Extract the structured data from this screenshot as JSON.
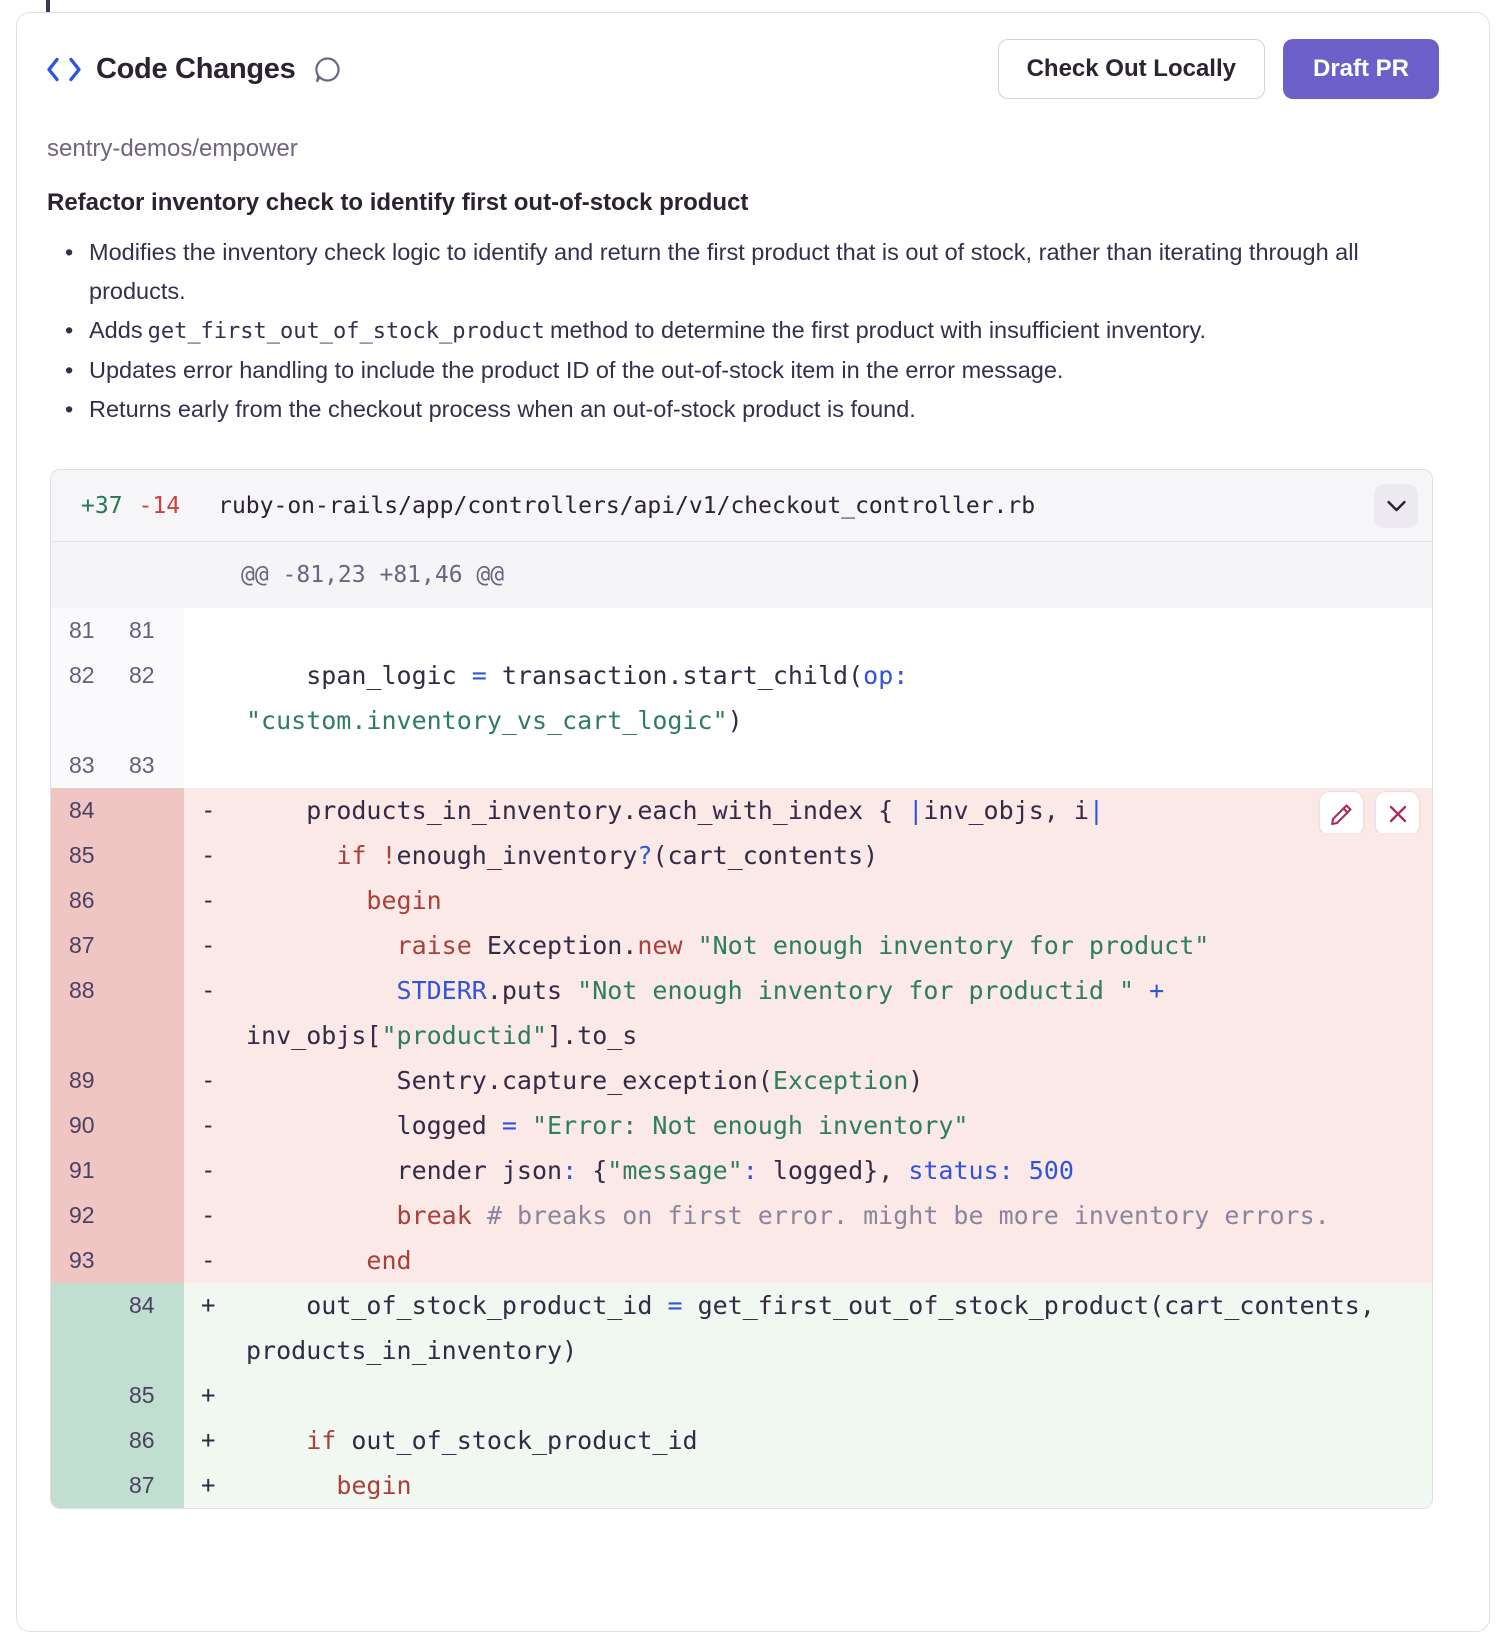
{
  "header": {
    "title": "Code Changes",
    "check_out_label": "Check Out Locally",
    "draft_pr_label": "Draft PR"
  },
  "repo": "sentry-demos/empower",
  "change_title": "Refactor inventory check to identify first out-of-stock product",
  "bullets": [
    {
      "pre": "Modifies the inventory check logic to identify and return the first product that is out of stock, rather than iterating through all products.",
      "code": "",
      "post": ""
    },
    {
      "pre": "Adds",
      "code": "get_first_out_of_stock_product",
      "post": "method to determine the first product with insufficient inventory."
    },
    {
      "pre": "Updates error handling to include the product ID of the out-of-stock item in the error message.",
      "code": "",
      "post": ""
    },
    {
      "pre": "Returns early from the checkout process when an out-of-stock product is found.",
      "code": "",
      "post": ""
    }
  ],
  "icons": {
    "title_icon": "code-icon",
    "comment_icon": "comment-bubble-icon",
    "collapse_icon": "chevron-down-icon",
    "edit_icon": "pencil-icon",
    "reject_icon": "x-icon"
  },
  "colors": {
    "accent_purple": "#6C5FC7",
    "added_green": "#257952",
    "removed_red": "#CE413C",
    "string_green": "#2E7D5E",
    "keyword_red": "#AA4039",
    "operator_blue": "#3055D8",
    "comment_gray": "#8B849B",
    "action_icon_maroon": "#A62B5E",
    "removed_row_bg": "#FAE9E7",
    "removed_gutter_bg": "#EFC6C3",
    "added_row_bg": "#F0F8F1",
    "added_gutter_bg": "#C0DFD0"
  },
  "diff": {
    "added_stat": "+37",
    "removed_stat": "-14",
    "file_path": "ruby-on-rails/app/controllers/api/v1/checkout_controller.rb",
    "hunk": "@@ -81,23 +81,46 @@",
    "markers": {
      "ctx": "",
      "del": "-",
      "add": "+"
    },
    "rows": [
      {
        "type": "ctx",
        "old": "81",
        "new": "81",
        "segs": []
      },
      {
        "type": "ctx",
        "old": "82",
        "new": "82",
        "segs": [
          [
            "d",
            "    span_logic "
          ],
          [
            "b",
            "="
          ],
          [
            "d",
            " transaction.start_child("
          ],
          [
            "b",
            "op:"
          ],
          [
            "d",
            " "
          ],
          [
            "s",
            "\"custom.inventory_vs_cart_logic\""
          ],
          [
            "d",
            ")"
          ]
        ]
      },
      {
        "type": "ctx",
        "old": "83",
        "new": "83",
        "segs": []
      },
      {
        "type": "del",
        "old": "84",
        "new": "",
        "actions": true,
        "segs": [
          [
            "d",
            "    products_in_inventory.each_with_index { "
          ],
          [
            "b",
            "|"
          ],
          [
            "d",
            "inv_objs, i"
          ],
          [
            "b",
            "|"
          ]
        ]
      },
      {
        "type": "del",
        "old": "85",
        "new": "",
        "segs": [
          [
            "d",
            "      "
          ],
          [
            "k",
            "if"
          ],
          [
            "d",
            " "
          ],
          [
            "k",
            "!"
          ],
          [
            "d",
            "enough_inventory"
          ],
          [
            "b",
            "?"
          ],
          [
            "d",
            "(cart_contents)"
          ]
        ]
      },
      {
        "type": "del",
        "old": "86",
        "new": "",
        "segs": [
          [
            "d",
            "        "
          ],
          [
            "k",
            "begin"
          ]
        ]
      },
      {
        "type": "del",
        "old": "87",
        "new": "",
        "segs": [
          [
            "d",
            "          "
          ],
          [
            "k",
            "raise"
          ],
          [
            "d",
            " Exception."
          ],
          [
            "k",
            "new"
          ],
          [
            "d",
            " "
          ],
          [
            "s",
            "\"Not enough inventory for product\""
          ]
        ]
      },
      {
        "type": "del",
        "old": "88",
        "new": "",
        "segs": [
          [
            "d",
            "          "
          ],
          [
            "b",
            "STDERR"
          ],
          [
            "d",
            ".puts "
          ],
          [
            "s",
            "\"Not enough inventory for productid \""
          ],
          [
            "d",
            " "
          ],
          [
            "b",
            "+"
          ],
          [
            "d",
            " inv_objs["
          ],
          [
            "s",
            "\"productid\""
          ],
          [
            "d",
            "].to_s"
          ]
        ]
      },
      {
        "type": "del",
        "old": "89",
        "new": "",
        "segs": [
          [
            "d",
            "          Sentry.capture_exception("
          ],
          [
            "s",
            "Exception"
          ],
          [
            "d",
            ")"
          ]
        ]
      },
      {
        "type": "del",
        "old": "90",
        "new": "",
        "segs": [
          [
            "d",
            "          logged "
          ],
          [
            "b",
            "="
          ],
          [
            "d",
            " "
          ],
          [
            "s",
            "\"Error: Not enough inventory\""
          ]
        ]
      },
      {
        "type": "del",
        "old": "91",
        "new": "",
        "segs": [
          [
            "d",
            "          render json"
          ],
          [
            "b",
            ":"
          ],
          [
            "d",
            " {"
          ],
          [
            "s",
            "\"message\""
          ],
          [
            "b",
            ":"
          ],
          [
            "d",
            " logged}, "
          ],
          [
            "b",
            "status:"
          ],
          [
            "d",
            " "
          ],
          [
            "b",
            "500"
          ]
        ]
      },
      {
        "type": "del",
        "old": "92",
        "new": "",
        "segs": [
          [
            "d",
            "          "
          ],
          [
            "k",
            "break"
          ],
          [
            "d",
            " "
          ],
          [
            "c",
            "# breaks on first error. might be more inventory errors."
          ]
        ]
      },
      {
        "type": "del",
        "old": "93",
        "new": "",
        "segs": [
          [
            "d",
            "        "
          ],
          [
            "k",
            "end"
          ]
        ]
      },
      {
        "type": "add",
        "old": "",
        "new": "84",
        "segs": [
          [
            "d",
            "    out_of_stock_product_id "
          ],
          [
            "b",
            "="
          ],
          [
            "d",
            " get_first_out_of_stock_product(cart_contents, products_in_inventory)"
          ]
        ]
      },
      {
        "type": "add",
        "old": "",
        "new": "85",
        "segs": []
      },
      {
        "type": "add",
        "old": "",
        "new": "86",
        "segs": [
          [
            "d",
            "    "
          ],
          [
            "k",
            "if"
          ],
          [
            "d",
            " out_of_stock_product_id"
          ]
        ]
      },
      {
        "type": "add",
        "old": "",
        "new": "87",
        "segs": [
          [
            "d",
            "      "
          ],
          [
            "k",
            "begin"
          ]
        ]
      }
    ]
  }
}
